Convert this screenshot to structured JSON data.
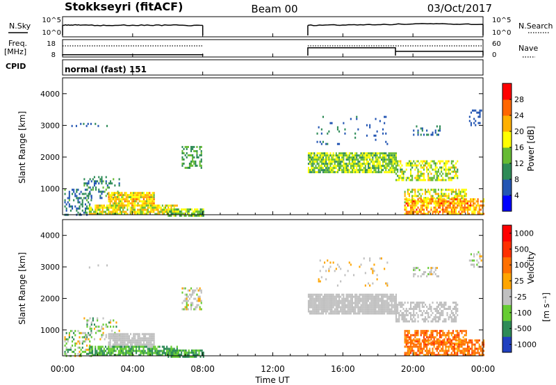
{
  "header": {
    "station": "Stokkseyri (fitACF)",
    "beam": "Beam 00",
    "date": "03/Oct/2017"
  },
  "chart_data": [
    {
      "type": "line",
      "panel": "noise",
      "left_label": "N.Sky",
      "right_label": "N.Search",
      "left_ticks": [
        "10^5",
        "10^0"
      ],
      "right_ticks": [
        "10^5",
        "10^0"
      ],
      "x_hours": [
        0,
        0.5,
        1,
        2,
        3,
        4,
        5,
        6,
        7,
        8,
        14,
        15,
        16,
        17,
        18,
        19,
        20,
        21,
        22,
        23,
        24
      ],
      "sky_log": [
        2.9,
        3.0,
        2.95,
        2.9,
        2.9,
        2.95,
        2.9,
        2.95,
        2.9,
        2.9,
        2.9,
        3.0,
        3.0,
        3.1,
        3.1,
        3.2,
        3.3,
        3.4,
        3.3,
        3.3,
        3.2
      ],
      "data_gap_hours": [
        8,
        14
      ],
      "ylim": [
        0,
        5
      ]
    },
    {
      "type": "line",
      "panel": "frequency",
      "left_label_line1": "Freq.",
      "left_label_line2": "[MHz]",
      "right_label": "Nave",
      "left_ticks": [
        "18",
        "8"
      ],
      "right_ticks": [
        "60",
        "0"
      ],
      "segments": [
        {
          "x_start": 0,
          "x_end": 8,
          "freq_mhz": 8.6,
          "nave": 40
        },
        {
          "x_start": 14,
          "x_end": 19,
          "freq_mhz": 13.4,
          "nave": 40
        },
        {
          "x_start": 19,
          "x_end": 24,
          "freq_mhz": 10.9,
          "nave": 40
        }
      ],
      "freq_ylim": [
        8,
        18
      ],
      "nave_ylim": [
        0,
        60
      ]
    },
    {
      "type": "text",
      "panel": "cpid",
      "label": "CPID",
      "value": "normal (fast) 151"
    },
    {
      "type": "heatmap",
      "panel": "power",
      "ylabel": "Slant Range [km]",
      "yticks": [
        1000,
        2000,
        3000,
        4000
      ],
      "ylim": [
        180,
        4500
      ],
      "colorbar_label": "Power [dB]",
      "colorbar_ticks": [
        4,
        8,
        12,
        16,
        20,
        24,
        28
      ],
      "colors": [
        "#0000ff",
        "#2456b3",
        "#2e8b57",
        "#66bb33",
        "#ffff00",
        "#ffb000",
        "#ff6600",
        "#ff0000"
      ],
      "patches": [
        {
          "x0": 0.1,
          "x1": 1.6,
          "y0": 200,
          "y1": 1000,
          "density": 0.35,
          "mean": 1.6,
          "spread": 1.0
        },
        {
          "x0": 1.2,
          "x1": 3.2,
          "y0": 700,
          "y1": 1400,
          "density": 0.3,
          "mean": 2.0,
          "spread": 1.0
        },
        {
          "x0": 2.6,
          "x1": 5.2,
          "y0": 500,
          "y1": 900,
          "density": 0.85,
          "mean": 4.5,
          "spread": 1.2
        },
        {
          "x0": 1.5,
          "x1": 6.5,
          "y0": 180,
          "y1": 500,
          "density": 0.75,
          "mean": 4.0,
          "spread": 1.5
        },
        {
          "x0": 6.0,
          "x1": 8.0,
          "y0": 180,
          "y1": 380,
          "density": 0.8,
          "mean": 3.0,
          "spread": 1.0
        },
        {
          "x0": 6.8,
          "x1": 7.9,
          "y0": 1650,
          "y1": 2350,
          "density": 0.45,
          "mean": 2.5,
          "spread": 1.0
        },
        {
          "x0": 14.0,
          "x1": 19.0,
          "y0": 1550,
          "y1": 2150,
          "density": 0.85,
          "mean": 3.2,
          "spread": 1.2
        },
        {
          "x0": 19.0,
          "x1": 22.5,
          "y0": 1300,
          "y1": 1900,
          "density": 0.55,
          "mean": 3.6,
          "spread": 1.2
        },
        {
          "x0": 19.5,
          "x1": 23.0,
          "y0": 600,
          "y1": 1000,
          "density": 0.6,
          "mean": 4.0,
          "spread": 1.2
        },
        {
          "x0": 19.5,
          "x1": 24.0,
          "y0": 200,
          "y1": 700,
          "density": 0.7,
          "mean": 5.2,
          "spread": 1.4
        },
        {
          "x0": 20.0,
          "x1": 21.5,
          "y0": 2700,
          "y1": 3000,
          "density": 0.3,
          "mean": 1.5,
          "spread": 0.8
        },
        {
          "x0": 0.5,
          "x1": 2.5,
          "y0": 2950,
          "y1": 3080,
          "density": 0.12,
          "mean": 1.2,
          "spread": 0.6
        },
        {
          "x0": 14.5,
          "x1": 18.5,
          "y0": 2400,
          "y1": 3300,
          "density": 0.06,
          "mean": 1.2,
          "spread": 0.6
        },
        {
          "x0": 23.2,
          "x1": 23.9,
          "y0": 3000,
          "y1": 3500,
          "density": 0.3,
          "mean": 1.0,
          "spread": 0.5
        }
      ]
    },
    {
      "type": "heatmap",
      "panel": "velocity",
      "ylabel": "Slant Range [km]",
      "yticks": [
        1000,
        2000,
        3000,
        4000
      ],
      "ylim": [
        180,
        4500
      ],
      "colorbar_label": "Velocity",
      "colorbar_unit": "[m s⁻¹]",
      "colorbar_ticks": [
        1000,
        500,
        100,
        25,
        -25,
        -100,
        -500,
        -1000
      ],
      "colors": [
        "#2040c0",
        "#2e8b57",
        "#66cc33",
        "#c0c0c0",
        "#ffa500",
        "#ff7000",
        "#ff3000",
        "#ff0000"
      ],
      "patches": [
        {
          "x0": 0.1,
          "x1": 1.6,
          "y0": 200,
          "y1": 1000,
          "density": 0.35,
          "mean": 2.5,
          "spread": 1.8
        },
        {
          "x0": 1.2,
          "x1": 3.2,
          "y0": 700,
          "y1": 1400,
          "density": 0.25,
          "mean": 2.5,
          "spread": 1.5
        },
        {
          "x0": 2.6,
          "x1": 5.2,
          "y0": 500,
          "y1": 900,
          "density": 0.85,
          "mean": 3.0,
          "spread": 0.5
        },
        {
          "x0": 1.5,
          "x1": 6.5,
          "y0": 180,
          "y1": 500,
          "density": 0.75,
          "mean": 1.6,
          "spread": 0.8
        },
        {
          "x0": 6.0,
          "x1": 8.0,
          "y0": 180,
          "y1": 380,
          "density": 0.8,
          "mean": 1.5,
          "spread": 0.7
        },
        {
          "x0": 6.8,
          "x1": 7.9,
          "y0": 1650,
          "y1": 2350,
          "density": 0.45,
          "mean": 3.0,
          "spread": 0.8
        },
        {
          "x0": 14.0,
          "x1": 19.0,
          "y0": 1550,
          "y1": 2150,
          "density": 0.9,
          "mean": 3.0,
          "spread": 0.3
        },
        {
          "x0": 19.0,
          "x1": 22.5,
          "y0": 1300,
          "y1": 1900,
          "density": 0.55,
          "mean": 3.0,
          "spread": 0.5
        },
        {
          "x0": 19.5,
          "x1": 23.0,
          "y0": 600,
          "y1": 1000,
          "density": 0.6,
          "mean": 5.0,
          "spread": 0.8
        },
        {
          "x0": 19.5,
          "x1": 24.0,
          "y0": 200,
          "y1": 700,
          "density": 0.7,
          "mean": 5.0,
          "spread": 0.8
        },
        {
          "x0": 20.0,
          "x1": 21.5,
          "y0": 2700,
          "y1": 3000,
          "density": 0.3,
          "mean": 3.0,
          "spread": 0.6
        },
        {
          "x0": 0.5,
          "x1": 2.5,
          "y0": 2950,
          "y1": 3080,
          "density": 0.12,
          "mean": 3.0,
          "spread": 0.5
        },
        {
          "x0": 14.5,
          "x1": 18.5,
          "y0": 2400,
          "y1": 3300,
          "density": 0.06,
          "mean": 3.5,
          "spread": 1.0
        },
        {
          "x0": 23.2,
          "x1": 23.9,
          "y0": 3000,
          "y1": 3500,
          "density": 0.3,
          "mean": 3.0,
          "spread": 0.6
        }
      ]
    }
  ],
  "x_axis": {
    "xlabel": "Time UT",
    "xlim": [
      0,
      24
    ],
    "tick_hours": [
      0,
      4,
      8,
      12,
      16,
      20,
      24
    ],
    "tick_labels": [
      "00:00",
      "04:00",
      "08:00",
      "12:00",
      "16:00",
      "20:00",
      "00:00"
    ]
  }
}
